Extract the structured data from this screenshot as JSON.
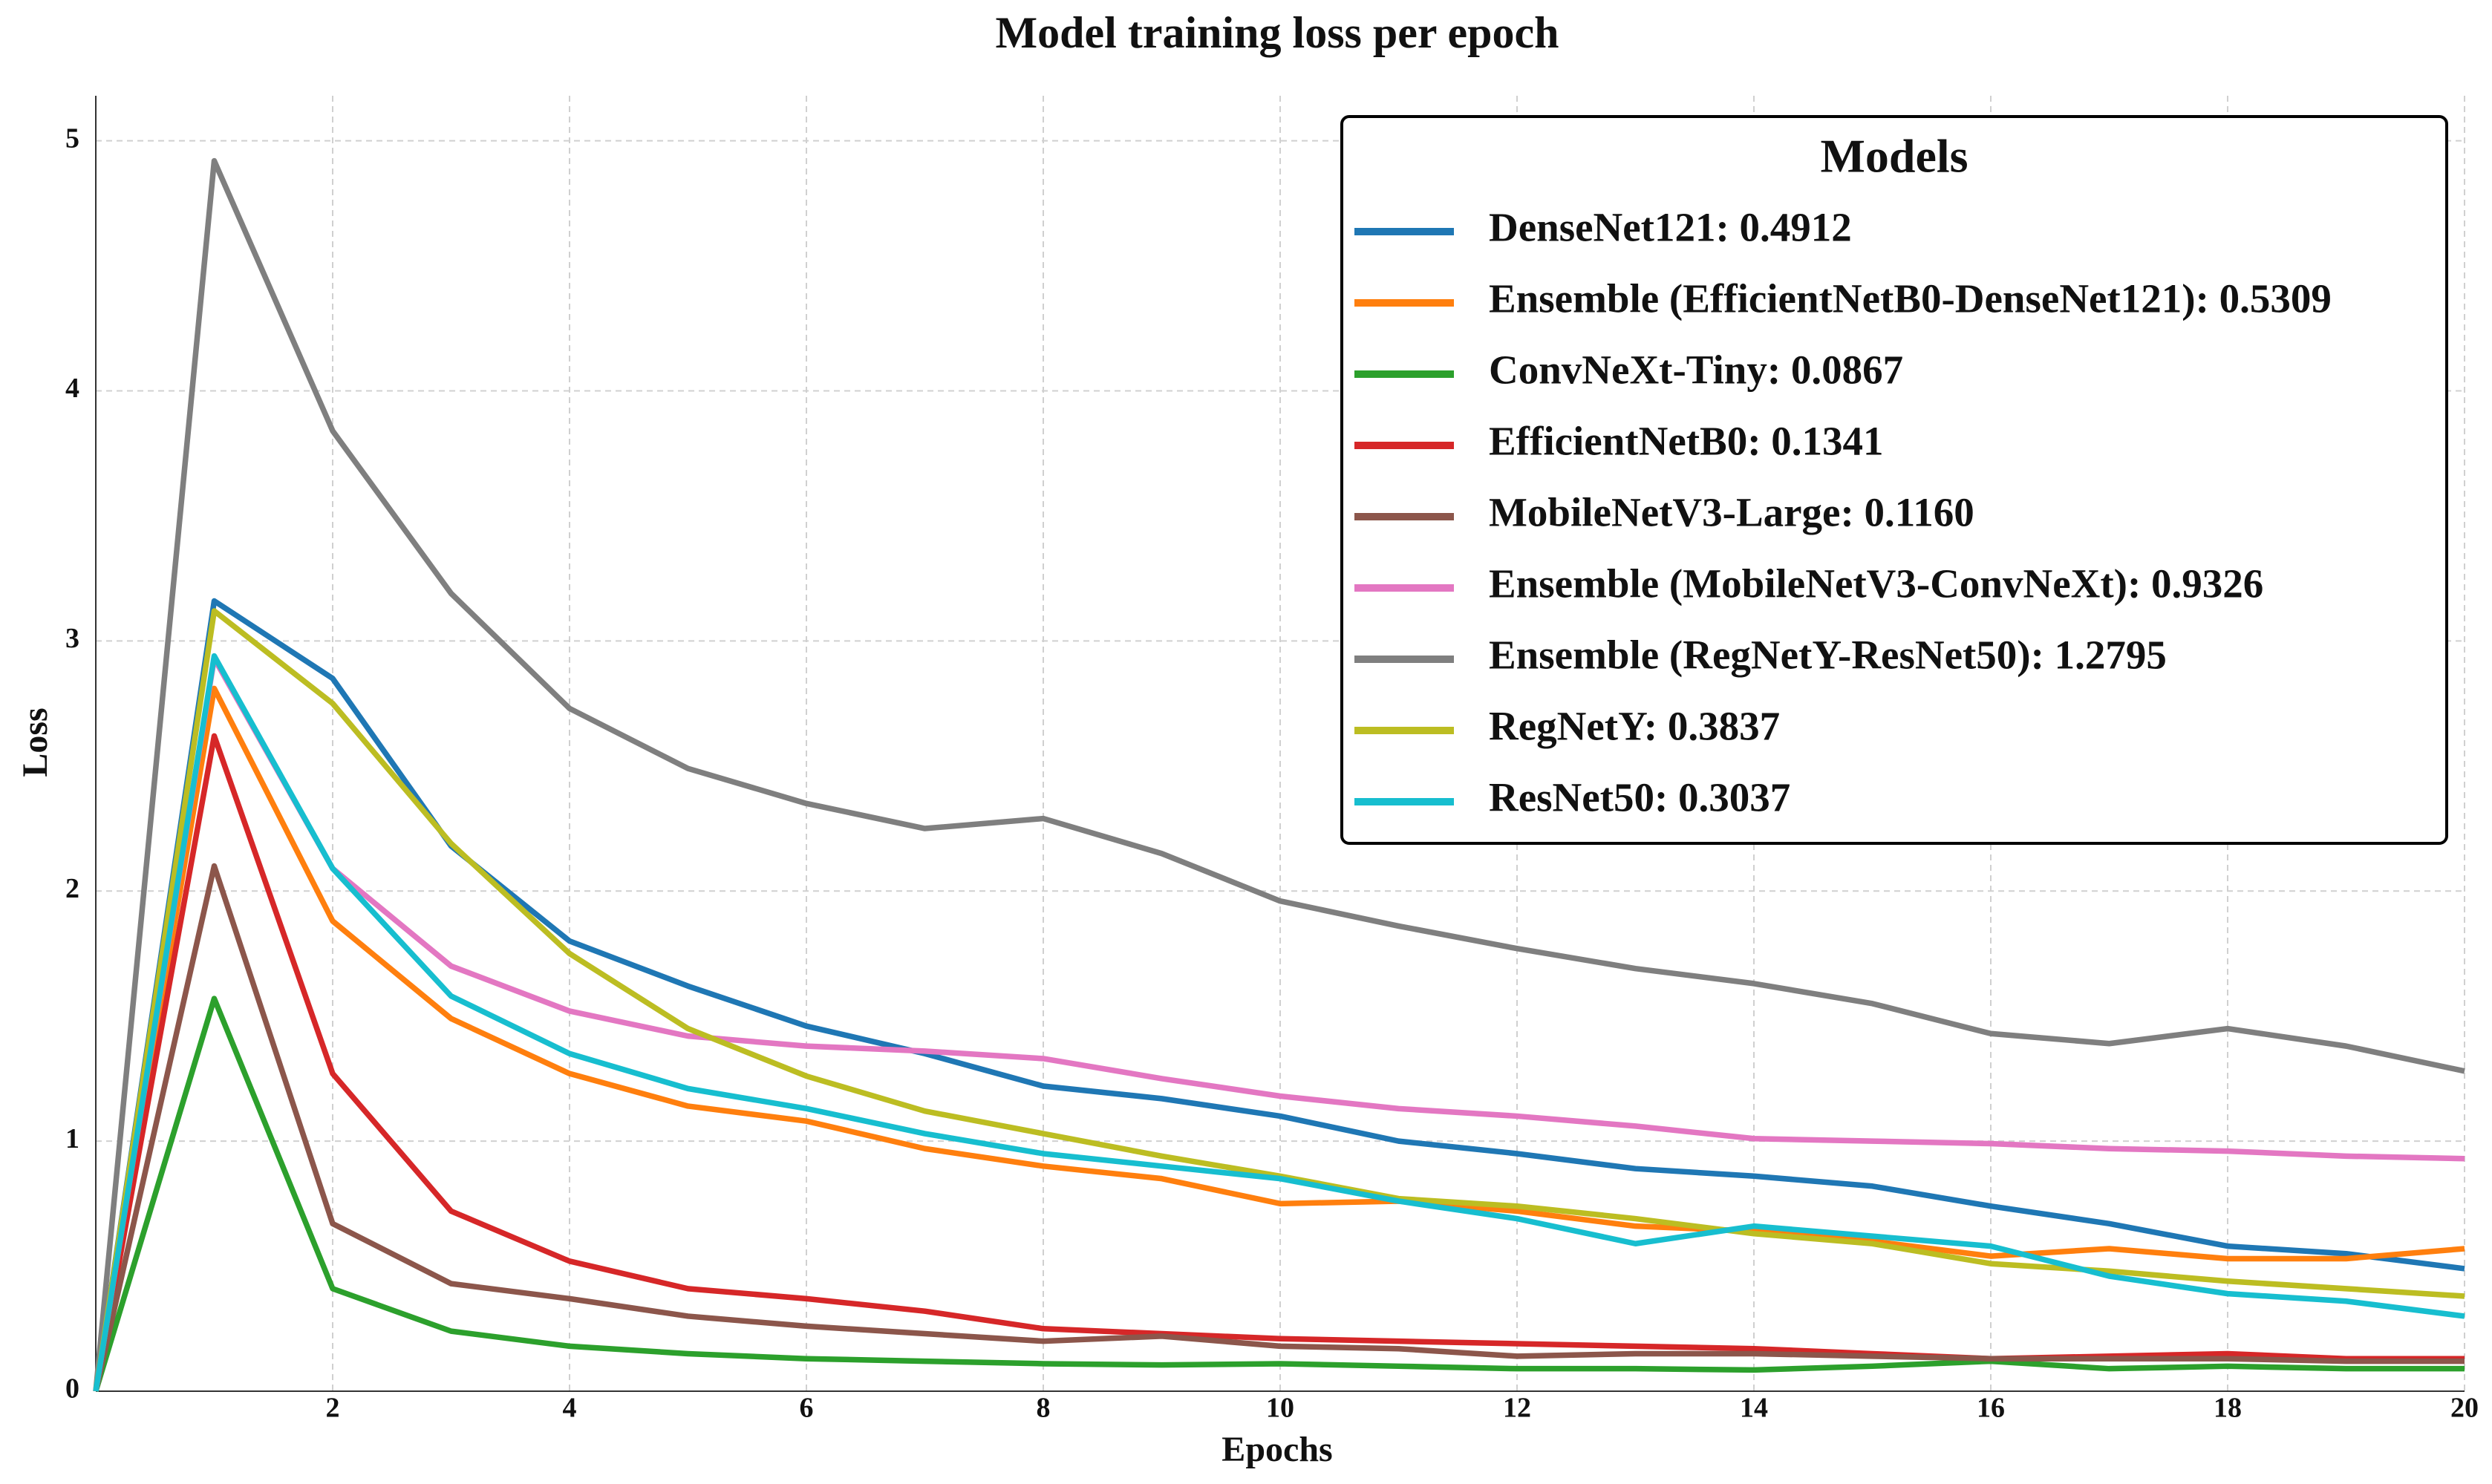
{
  "chart_data": {
    "type": "line",
    "title": "Model training loss per epoch",
    "x_label": "Epochs",
    "y_label": "Loss",
    "legend_title": "Models",
    "legend_position": "upper right",
    "grid": true,
    "x": [
      0,
      1,
      2,
      3,
      4,
      5,
      6,
      7,
      8,
      9,
      10,
      11,
      12,
      13,
      14,
      15,
      16,
      17,
      18,
      19,
      20
    ],
    "xlim": [
      0,
      20
    ],
    "ylim": [
      0,
      5.18
    ],
    "xticks": [
      2,
      4,
      6,
      8,
      10,
      12,
      14,
      16,
      18,
      20
    ],
    "yticks": [
      0,
      1,
      2,
      3,
      4,
      5
    ],
    "series": [
      {
        "name": "DenseNet121: 0.4912",
        "color": "#1f77b4",
        "values": [
          0,
          3.16,
          2.85,
          2.18,
          1.8,
          1.62,
          1.46,
          1.35,
          1.22,
          1.17,
          1.1,
          1.0,
          0.95,
          0.89,
          0.86,
          0.82,
          0.74,
          0.67,
          0.58,
          0.55,
          0.49
        ]
      },
      {
        "name": "Ensemble (EfficientNetB0-DenseNet121): 0.5309",
        "color": "#ff7f0e",
        "values": [
          0,
          2.81,
          1.88,
          1.49,
          1.27,
          1.14,
          1.08,
          0.97,
          0.9,
          0.85,
          0.75,
          0.76,
          0.72,
          0.66,
          0.64,
          0.6,
          0.54,
          0.57,
          0.53,
          0.53,
          0.57
        ]
      },
      {
        "name": "ConvNeXt-Tiny: 0.0867",
        "color": "#2ca02c",
        "values": [
          0,
          1.57,
          0.41,
          0.24,
          0.18,
          0.15,
          0.13,
          0.12,
          0.11,
          0.105,
          0.11,
          0.1,
          0.09,
          0.09,
          0.085,
          0.1,
          0.12,
          0.09,
          0.1,
          0.09,
          0.09
        ]
      },
      {
        "name": "EfficientNetB0: 0.1341",
        "color": "#d62728",
        "values": [
          0,
          2.62,
          1.27,
          0.72,
          0.52,
          0.41,
          0.37,
          0.32,
          0.25,
          0.23,
          0.21,
          0.2,
          0.19,
          0.18,
          0.17,
          0.15,
          0.13,
          0.14,
          0.15,
          0.13,
          0.13
        ]
      },
      {
        "name": "MobileNetV3-Large: 0.1160",
        "color": "#8c564b",
        "values": [
          0,
          2.1,
          0.67,
          0.43,
          0.37,
          0.3,
          0.26,
          0.23,
          0.2,
          0.22,
          0.18,
          0.17,
          0.14,
          0.15,
          0.15,
          0.14,
          0.13,
          0.13,
          0.13,
          0.12,
          0.12
        ]
      },
      {
        "name": "Ensemble (MobileNetV3-ConvNeXt): 0.9326",
        "color": "#e377c2",
        "values": [
          0,
          2.93,
          2.09,
          1.7,
          1.52,
          1.42,
          1.38,
          1.36,
          1.33,
          1.25,
          1.18,
          1.13,
          1.1,
          1.06,
          1.01,
          1.0,
          0.99,
          0.97,
          0.96,
          0.94,
          0.93
        ]
      },
      {
        "name": "Ensemble (RegNetY-ResNet50): 1.2795",
        "color": "#7f7f7f",
        "values": [
          0,
          4.92,
          3.84,
          3.19,
          2.73,
          2.49,
          2.35,
          2.25,
          2.29,
          2.15,
          1.96,
          1.86,
          1.77,
          1.69,
          1.63,
          1.55,
          1.43,
          1.39,
          1.45,
          1.38,
          1.28
        ]
      },
      {
        "name": "RegNetY: 0.3837",
        "color": "#bcbd22",
        "values": [
          0,
          3.12,
          2.75,
          2.19,
          1.75,
          1.45,
          1.26,
          1.12,
          1.03,
          0.94,
          0.86,
          0.77,
          0.74,
          0.69,
          0.63,
          0.59,
          0.51,
          0.48,
          0.44,
          0.41,
          0.38
        ]
      },
      {
        "name": "ResNet50: 0.3037",
        "color": "#17becf",
        "values": [
          0,
          2.94,
          2.09,
          1.58,
          1.35,
          1.21,
          1.13,
          1.03,
          0.95,
          0.9,
          0.85,
          0.76,
          0.69,
          0.59,
          0.66,
          0.62,
          0.58,
          0.46,
          0.39,
          0.36,
          0.3
        ]
      }
    ]
  }
}
